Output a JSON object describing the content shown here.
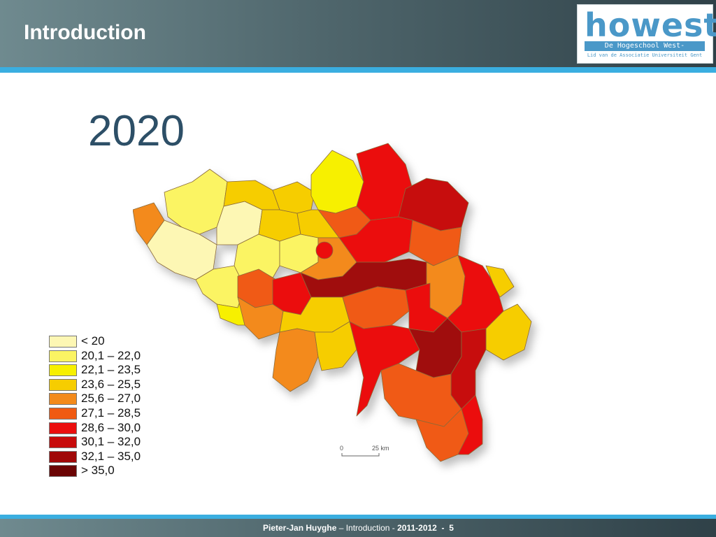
{
  "slide": {
    "title": "Introduction",
    "year": "2020"
  },
  "logo": {
    "word": "howest",
    "band": "De Hogeschool West-Vlaanderen",
    "sub": "Lid van de Associatie Universiteit Gent"
  },
  "legend": [
    {
      "label": "< 20",
      "color": "#fdf7b4"
    },
    {
      "label": "20,1 – 22,0",
      "color": "#fbf463"
    },
    {
      "label": "22,1 – 23,5",
      "color": "#f7f000"
    },
    {
      "label": "23,6 – 25,5",
      "color": "#f6cd00"
    },
    {
      "label": "25,6 – 27,0",
      "color": "#f38a1b"
    },
    {
      "label": "27,1 – 28,5",
      "color": "#f05a12"
    },
    {
      "label": "28,6 – 30,0",
      "color": "#eb0e0e"
    },
    {
      "label": "30,1 – 32,0",
      "color": "#c70b0b"
    },
    {
      "label": "32,1 – 35,0",
      "color": "#a00808"
    },
    {
      "label": "> 35,0",
      "color": "#6b0404"
    }
  ],
  "scalebar": {
    "start": "0",
    "end": "25 km"
  },
  "footer": {
    "author": "Pieter-Jan Huyghe",
    "dash": " – ",
    "topic": "Introduction",
    "sep": " - ",
    "year": "2011-2012",
    "sep2": "  -  ",
    "page": "5"
  }
}
